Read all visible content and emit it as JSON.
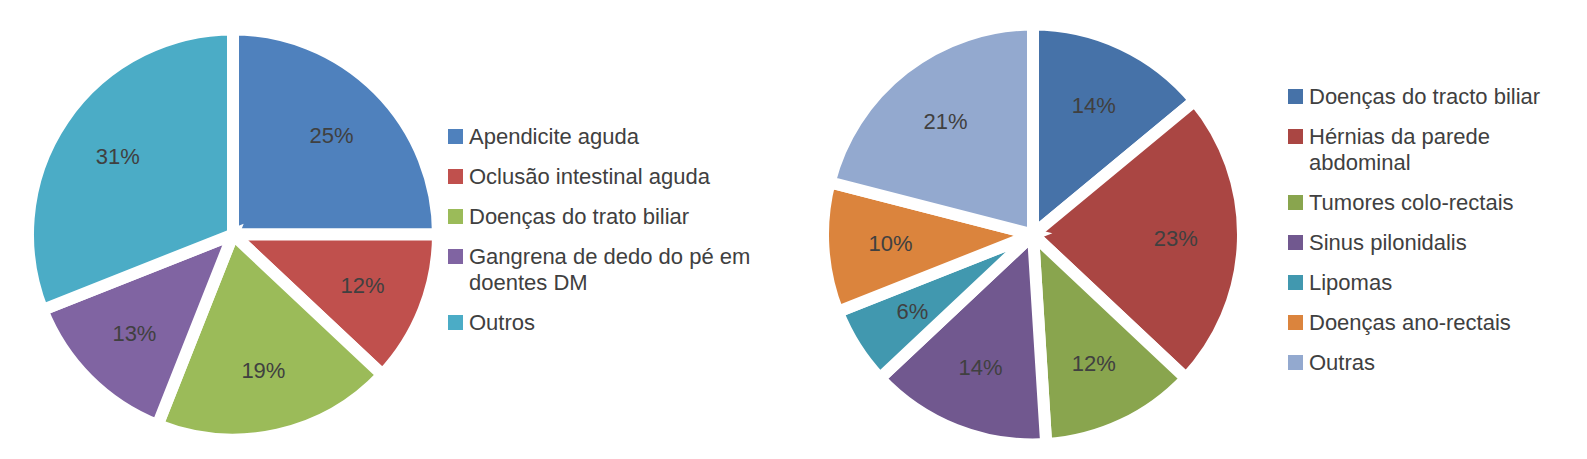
{
  "chart_data": [
    {
      "type": "pie",
      "categories": [
        "Apendicite aguda",
        "Oclusão intestinal aguda",
        "Doenças do trato biliar",
        "Gangrena de dedo do pé em doentes DM",
        "Outros"
      ],
      "values": [
        25,
        12,
        19,
        13,
        31
      ],
      "value_labels": [
        "25%",
        "12%",
        "19%",
        "13%",
        "31%"
      ],
      "colors": [
        "#4f81bd",
        "#c0504d",
        "#9bbb59",
        "#8064a2",
        "#4bacc6"
      ],
      "data_labels": true,
      "legend": "right"
    },
    {
      "type": "pie",
      "categories": [
        "Doenças do tracto biliar",
        "Hérnias da parede abdominal",
        "Tumores colo-rectais",
        "Sinus pilonidalis",
        "Lipomas",
        "Doenças ano-rectais",
        "Outras"
      ],
      "values": [
        14,
        23,
        12,
        14,
        6,
        10,
        21
      ],
      "value_labels": [
        "14%",
        "23%",
        "12%",
        "14%",
        "6%",
        "10%",
        "21%"
      ],
      "colors": [
        "#4672a8",
        "#aa4643",
        "#89a54e",
        "#71588f",
        "#4198af",
        "#db843d",
        "#93a9cf"
      ],
      "data_labels": true,
      "legend": "right"
    }
  ]
}
